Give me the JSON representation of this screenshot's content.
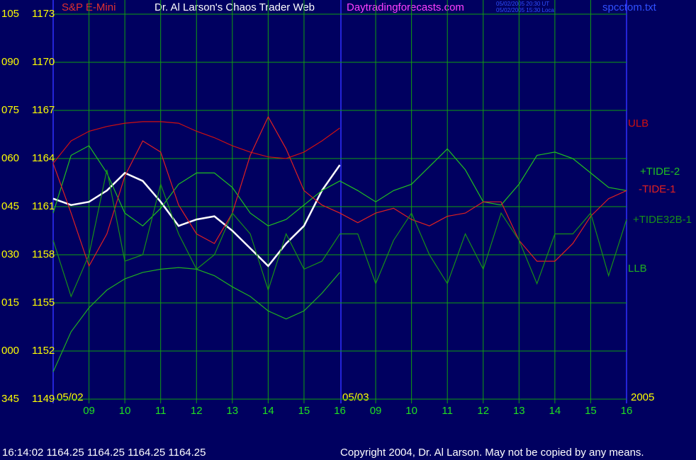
{
  "chart_data": {
    "type": "line",
    "header": "Dr. Al Larson's Chaos Trader Web",
    "site": "Daytradingforecasts.com",
    "stamp": [
      "05/02/2005 20:30 UT",
      "05/02/2005 15:30 Local"
    ],
    "file": "spcctom.txt",
    "footer_quote": "16:14:02  1164.25 1164.25 1164.25 1164.25",
    "copyright": "Copyright 2004, Dr. Al Larson. May not be copied by any means.",
    "day_labels": [
      "05/02",
      "05/03",
      "2005"
    ],
    "hour_labels": [
      "09",
      "10",
      "11",
      "12",
      "13",
      "14",
      "15",
      "16",
      "09",
      "10",
      "11",
      "12",
      "13",
      "14",
      "15",
      "16"
    ],
    "ylim": [
      1149,
      1173
    ],
    "yticks": [
      1149,
      1152,
      1155,
      1158,
      1161,
      1164,
      1167,
      1170,
      1173
    ],
    "angle_labels": [
      "345",
      "000",
      "015",
      "030",
      "045",
      "060",
      "075",
      "090",
      "105"
    ],
    "grid": true,
    "series": [
      {
        "name": "S&P E-Mini",
        "color": "#ffffff",
        "values": [
          1161.5,
          1161.1,
          1161.3,
          1162.0,
          1163.1,
          1162.6,
          1161.3,
          1159.8,
          1160.2,
          1160.4,
          1159.5,
          1158.4,
          1157.3,
          1158.7,
          1159.8,
          1162.0,
          1163.6,
          null,
          null,
          null,
          null,
          null,
          null,
          null,
          null,
          null,
          null,
          null,
          null,
          null,
          null,
          null,
          null
        ]
      },
      {
        "name": "ULB",
        "color": "#d01010",
        "values": [
          1163.7,
          1165.1,
          1165.7,
          1166.0,
          1166.2,
          1166.3,
          1166.3,
          1166.2,
          1165.7,
          1165.3,
          1164.8,
          1164.4,
          1164.1,
          1164.0,
          1164.4,
          1165.1,
          1165.9,
          null,
          null,
          null,
          null,
          null,
          null,
          null,
          null,
          null,
          null,
          null,
          null,
          null,
          null,
          null,
          null
        ]
      },
      {
        "name": "+TIDE-2",
        "color": "#20c020",
        "values": [
          1160.6,
          1164.2,
          1164.8,
          1163.1,
          1160.6,
          1159.8,
          1160.9,
          1162.4,
          1163.1,
          1163.1,
          1162.2,
          1160.6,
          1159.8,
          1160.2,
          1161.1,
          1162.0,
          1162.6,
          1162.0,
          1161.3,
          1162.0,
          1162.4,
          1163.5,
          1164.6,
          1163.3,
          1161.3,
          1161.1,
          1162.4,
          1164.2,
          1164.4,
          1164.0,
          1163.1,
          1162.2,
          1162.0
        ]
      },
      {
        "name": "-TIDE-1",
        "color": "#e02020",
        "values": [
          1163.7,
          1160.6,
          1157.3,
          1159.3,
          1162.9,
          1165.1,
          1164.4,
          1161.1,
          1159.3,
          1158.7,
          1160.6,
          1164.2,
          1166.6,
          1164.6,
          1162.0,
          1161.1,
          1160.6,
          1160.0,
          1160.6,
          1160.9,
          1160.2,
          1159.8,
          1160.4,
          1160.6,
          1161.3,
          1161.3,
          1158.9,
          1157.6,
          1157.6,
          1158.7,
          1160.4,
          1161.5,
          1162.0
        ]
      },
      {
        "name": "+TIDE32B-1",
        "color": "#189018",
        "values": [
          1158.9,
          1155.4,
          1158.0,
          1163.3,
          1157.6,
          1158.0,
          1162.4,
          1159.3,
          1157.1,
          1158.0,
          1160.6,
          1159.3,
          1155.8,
          1159.3,
          1157.1,
          1157.6,
          1159.3,
          1159.3,
          1156.2,
          1158.9,
          1160.6,
          1158.0,
          1156.2,
          1159.3,
          1157.1,
          1160.6,
          1158.9,
          1156.2,
          1159.3,
          1159.3,
          1160.6,
          1156.7,
          1160.2
        ]
      },
      {
        "name": "LLB",
        "color": "#20b020",
        "values": [
          1150.7,
          1153.2,
          1154.7,
          1155.8,
          1156.5,
          1156.9,
          1157.1,
          1157.2,
          1157.1,
          1156.7,
          1156.0,
          1155.4,
          1154.5,
          1154.0,
          1154.5,
          1155.6,
          1156.9,
          null,
          null,
          null,
          null,
          null,
          null,
          null,
          null,
          null,
          null,
          null,
          null,
          null,
          null,
          null,
          null
        ]
      }
    ]
  }
}
